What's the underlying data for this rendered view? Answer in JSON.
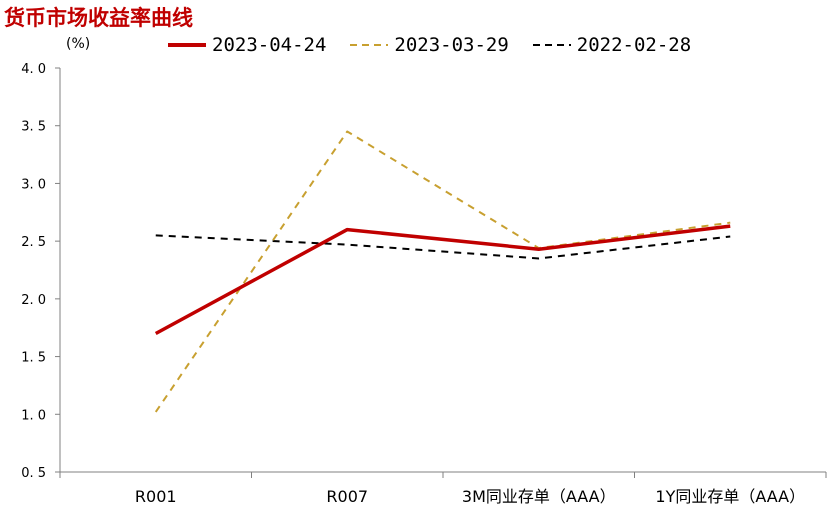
{
  "chart_data": {
    "type": "line",
    "title": "货币市场收益率曲线",
    "ylabel": "(%)",
    "xlabel": "",
    "categories": [
      "R001",
      "R007",
      "3M同业存单（AAA）",
      "1Y同业存单（AAA）"
    ],
    "ylim": [
      0.5,
      4.0
    ],
    "yticks": [
      "0.5",
      "1.0",
      "1.5",
      "2.0",
      "2.5",
      "3.0",
      "3.5",
      "4.0"
    ],
    "grid": false,
    "legend_position": "top",
    "series": [
      {
        "name": "2023-04-24",
        "values": [
          1.7,
          2.6,
          2.43,
          2.63
        ],
        "color": "#c00000",
        "style": "solid"
      },
      {
        "name": "2023-03-29",
        "values": [
          1.02,
          3.45,
          2.44,
          2.66
        ],
        "color": "#c8a030",
        "style": "dashed"
      },
      {
        "name": "2022-02-28",
        "values": [
          2.55,
          2.47,
          2.35,
          2.54
        ],
        "color": "#000000",
        "style": "dashed"
      }
    ]
  }
}
